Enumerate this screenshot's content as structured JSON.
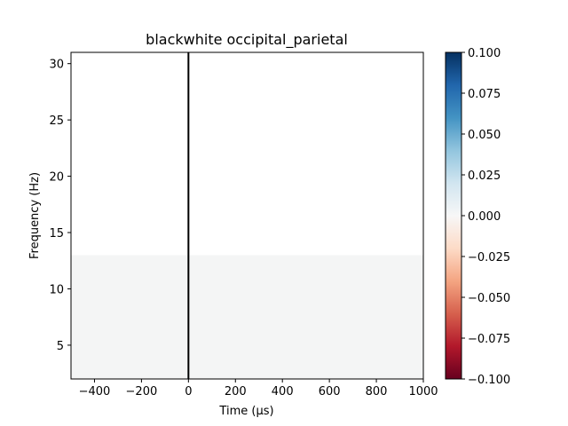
{
  "chart_data": {
    "type": "heatmap",
    "title": "blackwhite occipital_parietal",
    "xlabel": "Time (µs)",
    "ylabel": "Frequency (Hz)",
    "xlim": [
      -500,
      1000
    ],
    "ylim": [
      2,
      31
    ],
    "xticks": [
      -400,
      -200,
      0,
      200,
      400,
      600,
      800,
      1000
    ],
    "xtick_labels": [
      "−400",
      "−200",
      "0",
      "200",
      "400",
      "600",
      "800",
      "1000"
    ],
    "yticks": [
      5,
      10,
      15,
      20,
      25,
      30
    ],
    "ytick_labels": [
      "5",
      "10",
      "15",
      "20",
      "25",
      "30"
    ],
    "regions": [
      {
        "freq_range": [
          2,
          13
        ],
        "time_range": [
          -500,
          1000
        ],
        "value": 0.0,
        "color": "#f4f5f5"
      },
      {
        "freq_range": [
          13,
          31
        ],
        "time_range": [
          -500,
          1000
        ],
        "value": 0.0,
        "color": "#ffffff"
      }
    ],
    "event_line": {
      "x": 0,
      "color": "#000000"
    },
    "colorbar": {
      "cmap": "RdBu_r",
      "range": [
        -0.1,
        0.1
      ],
      "ticks": [
        -0.1,
        -0.075,
        -0.05,
        -0.025,
        0.0,
        0.025,
        0.05,
        0.075,
        0.1
      ],
      "tick_labels": [
        "−0.100",
        "−0.075",
        "−0.050",
        "−0.025",
        "0.000",
        "0.025",
        "0.050",
        "0.075",
        "0.100"
      ],
      "colors": [
        "#67001f",
        "#b2182b",
        "#d6604d",
        "#f4a582",
        "#fddbc7",
        "#f7f7f7",
        "#d1e5f0",
        "#92c5de",
        "#4393c3",
        "#2166ac",
        "#053061"
      ]
    }
  }
}
